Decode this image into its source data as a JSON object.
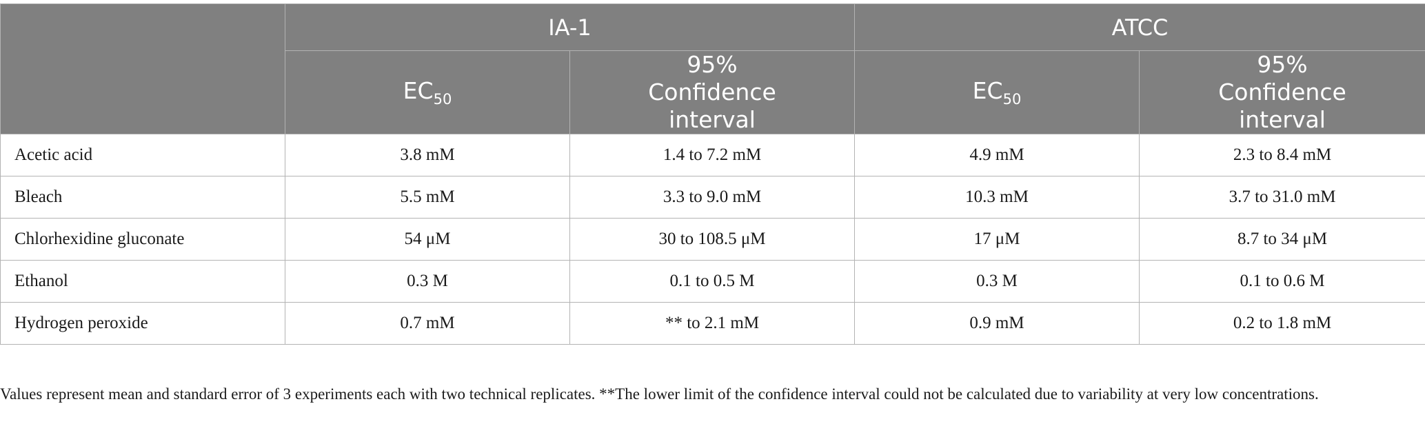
{
  "header": {
    "group1": "IA-1",
    "group2": "ATCC",
    "ec_label": "EC",
    "ec_sub": "50",
    "ci_label": "95% Confidence interval"
  },
  "rows": [
    {
      "name": "Acetic acid",
      "ia1_ec50": "3.8 mM",
      "ia1_ci": "1.4 to 7.2 mM",
      "atcc_ec50": "4.9 mM",
      "atcc_ci": "2.3 to 8.4 mM"
    },
    {
      "name": "Bleach",
      "ia1_ec50": "5.5 mM",
      "ia1_ci": "3.3 to 9.0 mM",
      "atcc_ec50": "10.3 mM",
      "atcc_ci": "3.7 to 31.0 mM"
    },
    {
      "name": "Chlorhexidine gluconate",
      "ia1_ec50": "54 μM",
      "ia1_ci": "30 to 108.5 μM",
      "atcc_ec50": "17 μM",
      "atcc_ci": "8.7 to 34 μM"
    },
    {
      "name": "Ethanol",
      "ia1_ec50": "0.3 M",
      "ia1_ci": "0.1 to 0.5 M",
      "atcc_ec50": "0.3 M",
      "atcc_ci": "0.1 to 0.6 M"
    },
    {
      "name": "Hydrogen peroxide",
      "ia1_ec50": "0.7 mM",
      "ia1_ci": "** to 2.1 mM",
      "atcc_ec50": "0.9 mM",
      "atcc_ci": "0.2 to 1.8 mM"
    }
  ],
  "footnote": "Values represent mean and standard error of 3 experiments each with two technical replicates. **The lower limit of the confidence interval could not be calculated due to variability at very low concentrations."
}
